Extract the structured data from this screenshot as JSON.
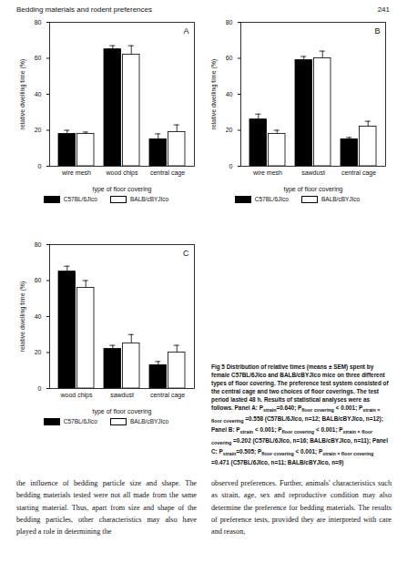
{
  "header": {
    "running_head": "Bedding materials and rodent preferences",
    "page_number": "241"
  },
  "chart_data": [
    {
      "type": "bar",
      "panel": "A",
      "categories": [
        "wire mesh",
        "wood chips",
        "central cage"
      ],
      "series": [
        {
          "name": "C57BL/6JIco",
          "color": "#000000",
          "values": [
            18,
            65,
            15
          ],
          "errors": [
            2,
            2,
            3
          ]
        },
        {
          "name": "BALB/cBYJIco",
          "color": "#ffffff",
          "values": [
            18,
            62,
            19
          ],
          "errors": [
            1,
            5,
            4
          ]
        }
      ],
      "xlabel": "type of floor covering",
      "ylabel": "relative dwelling time (%)",
      "ylim": [
        0,
        80
      ],
      "yticks": [
        0,
        20,
        40,
        60,
        80
      ],
      "legend": "bottom"
    },
    {
      "type": "bar",
      "panel": "B",
      "categories": [
        "wire mesh",
        "sawdust",
        "central cage"
      ],
      "series": [
        {
          "name": "C57BL/6JIco",
          "color": "#000000",
          "values": [
            26,
            59,
            15
          ],
          "errors": [
            3,
            2,
            1
          ]
        },
        {
          "name": "BALB/cBYJIco",
          "color": "#ffffff",
          "values": [
            18,
            60,
            22
          ],
          "errors": [
            2,
            4,
            3
          ]
        }
      ],
      "xlabel": "type of floor covering",
      "ylabel": "relative dwelling time (%)",
      "ylim": [
        0,
        80
      ],
      "yticks": [
        0,
        20,
        40,
        60,
        80
      ],
      "legend": "bottom"
    },
    {
      "type": "bar",
      "panel": "C",
      "categories": [
        "wood chips",
        "sawdust",
        "central cage"
      ],
      "series": [
        {
          "name": "C57BL/6JIco",
          "color": "#000000",
          "values": [
            65,
            22,
            13
          ],
          "errors": [
            3,
            2,
            2
          ]
        },
        {
          "name": "BALB/cBYJIco",
          "color": "#ffffff",
          "values": [
            56,
            25,
            20
          ],
          "errors": [
            4,
            5,
            4
          ]
        }
      ],
      "xlabel": "type of floor covering",
      "ylabel": "relative dwelling time (%)",
      "ylim": [
        0,
        80
      ],
      "yticks": [
        0,
        20,
        40,
        60,
        80
      ],
      "legend": "bottom"
    }
  ],
  "caption": [
    "Fig 5 Distribution of relative times (means ± SEM) spent by female C57BL/6JIco and BALB/cBYJIco mice on three different types of floor covering. The preference test system consisted of the central cage and two choices of floor coverings. The test period lasted 48 h. Results of statistical analyses were as follows. Panel A: P",
    {
      "sub": "strain"
    },
    "=0.640; P",
    {
      "sub": "floor covering"
    },
    " < 0.001; P",
    {
      "sub": "strain × floor covering"
    },
    " =0.558 (C57BL/6JIco, n=12; BALB/cBYJIco, n=12); Panel B: P",
    {
      "sub": "strain"
    },
    " < 0.001; P",
    {
      "sub": "floor covering"
    },
    " < 0.001; P",
    {
      "sub": "strain × floor covering"
    },
    " =0.202 (C57BL/6JIco, n=16; BALB/cBYJIco, n=11); Panel C: P",
    {
      "sub": "strain"
    },
    "=0.505; P",
    {
      "sub": "floor covering"
    },
    " < 0.001; P",
    {
      "sub": "strain × floor covering"
    },
    " =0.471 (C57BL/6JIco, n=11; BALB/cBYJIco, n=9)"
  ],
  "body": {
    "left_column": "the influence of bedding particle size and shape. The bedding materials tested were not all made from the same starting material. Thus, apart from size and shape of the bedding particles, other characteristics may also have played a role in determining the",
    "right_column": "observed preferences. Further, animals' characteristics such as strain, age, sex and reproductive condition may also determine the preference for bedding materials. The results of preference tests, provided they are interpreted with care and reason,"
  }
}
